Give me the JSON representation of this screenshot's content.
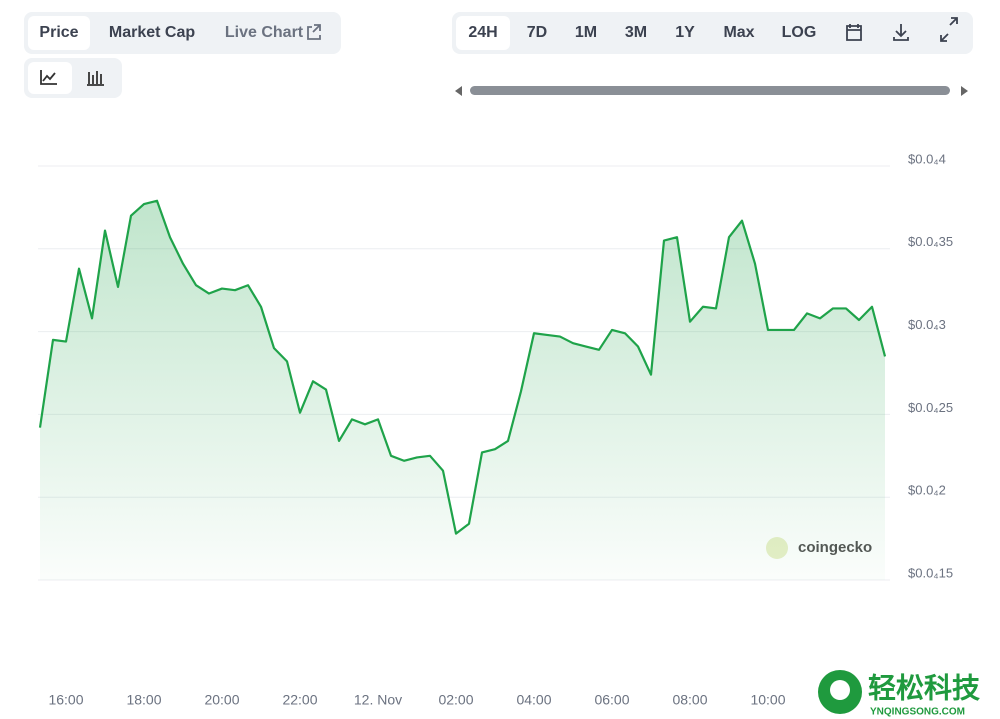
{
  "ui": {
    "tabs": [
      "Price",
      "Market Cap",
      "Live Chart"
    ],
    "ranges": [
      "24H",
      "7D",
      "1M",
      "3M",
      "1Y",
      "Max",
      "LOG"
    ],
    "watermark": "coingecko",
    "brand": "轻松科技",
    "brand_url": "YNQINGSONG.COM"
  },
  "chart_data": {
    "type": "line",
    "color": "#1fa34a",
    "grid": true,
    "categories": [
      null,
      null,
      "16:00",
      null,
      null,
      null,
      null,
      null,
      "18:00",
      null,
      null,
      null,
      null,
      null,
      "20:00",
      null,
      null,
      null,
      null,
      null,
      "22:00",
      null,
      null,
      null,
      null,
      null,
      "12. Nov",
      null,
      null,
      null,
      null,
      null,
      "02:00",
      null,
      null,
      null,
      null,
      null,
      "04:00",
      null,
      null,
      null,
      null,
      null,
      "06:00",
      null,
      null,
      null,
      null,
      null,
      "08:00",
      null,
      null,
      null,
      null,
      null,
      "10:00",
      null,
      null,
      null,
      null,
      null,
      null,
      null,
      null,
      null
    ],
    "series": [
      {
        "name": "Price",
        "color": "#1fa34a",
        "values": [
          2.42e-05,
          2.95e-05,
          2.94e-05,
          3.38e-05,
          3.08e-05,
          3.61e-05,
          3.27e-05,
          3.7e-05,
          3.77e-05,
          3.79e-05,
          3.57e-05,
          3.41e-05,
          3.28e-05,
          3.23e-05,
          3.26e-05,
          3.25e-05,
          3.28e-05,
          3.15e-05,
          2.9e-05,
          2.82e-05,
          2.51e-05,
          2.7e-05,
          2.65e-05,
          2.34e-05,
          2.47e-05,
          2.44e-05,
          2.47e-05,
          2.25e-05,
          2.22e-05,
          2.24e-05,
          2.25e-05,
          2.16e-05,
          1.78e-05,
          1.84e-05,
          2.27e-05,
          2.29e-05,
          2.34e-05,
          2.64e-05,
          2.99e-05,
          2.98e-05,
          2.97e-05,
          2.93e-05,
          2.91e-05,
          2.89e-05,
          3.01e-05,
          2.99e-05,
          2.91e-05,
          2.74e-05,
          3.55e-05,
          3.57e-05,
          3.06e-05,
          3.15e-05,
          3.14e-05,
          3.57e-05,
          3.67e-05,
          3.41e-05,
          3.01e-05,
          3.01e-05,
          3.01e-05,
          3.11e-05,
          3.08e-05,
          3.14e-05,
          3.14e-05,
          3.07e-05,
          3.15e-05,
          2.85e-05
        ]
      }
    ],
    "ylim": [
      1.5e-05,
      4e-05
    ],
    "yticks": [
      {
        "value": 1.5e-05,
        "label": "$0.0₄15"
      },
      {
        "value": 2e-05,
        "label": "$0.0₄2"
      },
      {
        "value": 2.5e-05,
        "label": "$0.0₄25"
      },
      {
        "value": 3e-05,
        "label": "$0.0₄3"
      },
      {
        "value": 3.5e-05,
        "label": "$0.0₄35"
      },
      {
        "value": 4e-05,
        "label": "$0.0₄4"
      }
    ]
  }
}
